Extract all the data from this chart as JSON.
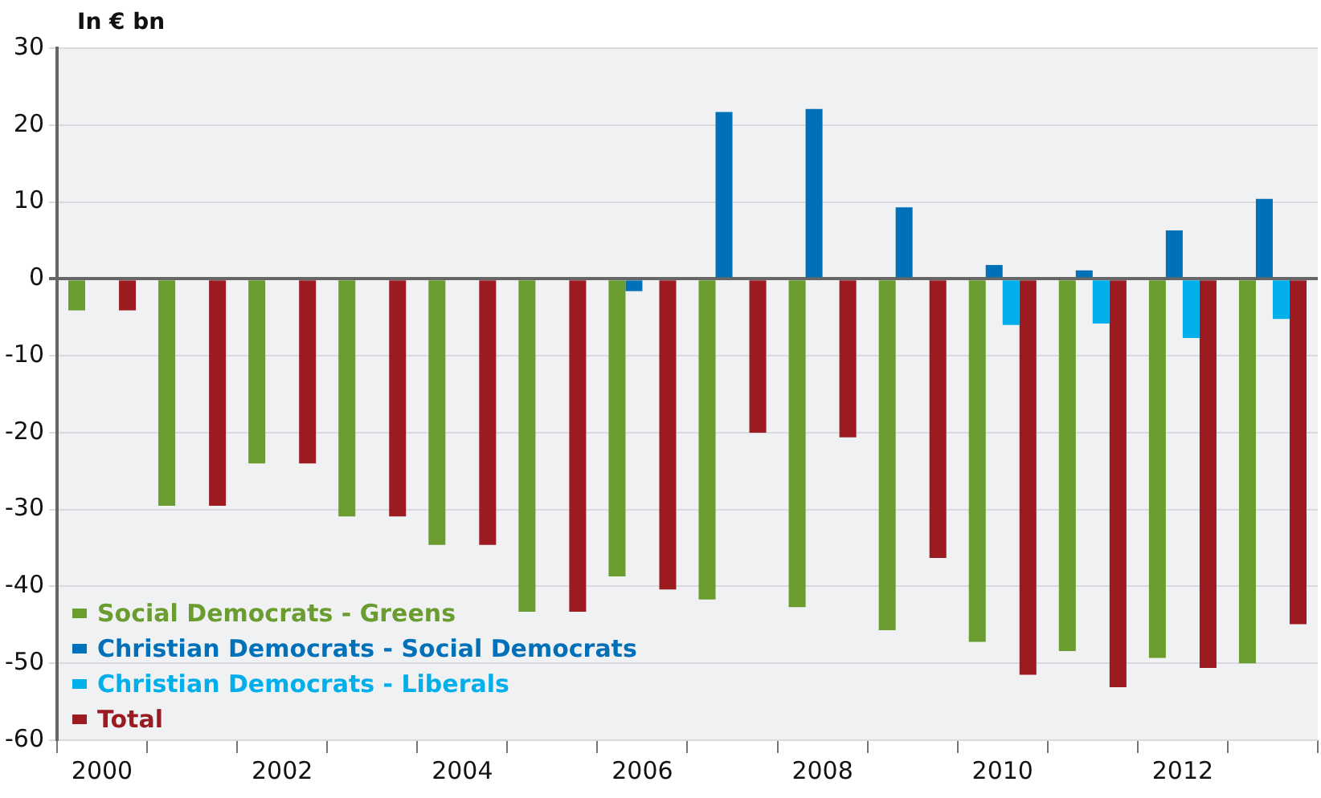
{
  "chart_data": {
    "type": "bar",
    "ylabel": "In € bn",
    "categories": [
      "2000",
      null,
      "2002",
      null,
      "2004",
      null,
      "2006",
      null,
      "2008",
      null,
      "2010",
      null,
      "2012",
      null
    ],
    "series": [
      {
        "name": "Social Democrats - Greens",
        "color": "#6a9c2f",
        "values": [
          -4.1,
          -29.5,
          -24.0,
          -30.9,
          -34.6,
          -43.3,
          -38.7,
          -41.7,
          -42.7,
          -45.7,
          -47.2,
          -48.4,
          -49.3,
          -50.0
        ]
      },
      {
        "name": "Christian Democrats - Social Democrats",
        "color": "#0070b8",
        "values": [
          null,
          null,
          null,
          null,
          null,
          null,
          -1.6,
          21.7,
          22.1,
          9.3,
          1.8,
          1.1,
          6.3,
          10.4
        ]
      },
      {
        "name": "Christian Democrats - Liberals",
        "color": "#00aeea",
        "values": [
          null,
          null,
          null,
          null,
          null,
          null,
          null,
          null,
          null,
          null,
          -6.0,
          -5.8,
          -7.7,
          -5.2
        ]
      },
      {
        "name": "Total",
        "color": "#9b1b21",
        "values": [
          -4.1,
          -29.5,
          -24.0,
          -30.9,
          -34.6,
          -43.3,
          -40.4,
          -20.0,
          -20.6,
          -36.3,
          -51.5,
          -53.1,
          -50.6,
          -44.9
        ]
      }
    ],
    "ylim": [
      -60,
      30
    ],
    "yticks": [
      -60,
      -50,
      -40,
      -30,
      -20,
      -10,
      0,
      10,
      20,
      30
    ],
    "grid": "y",
    "legend": "bottom left"
  }
}
